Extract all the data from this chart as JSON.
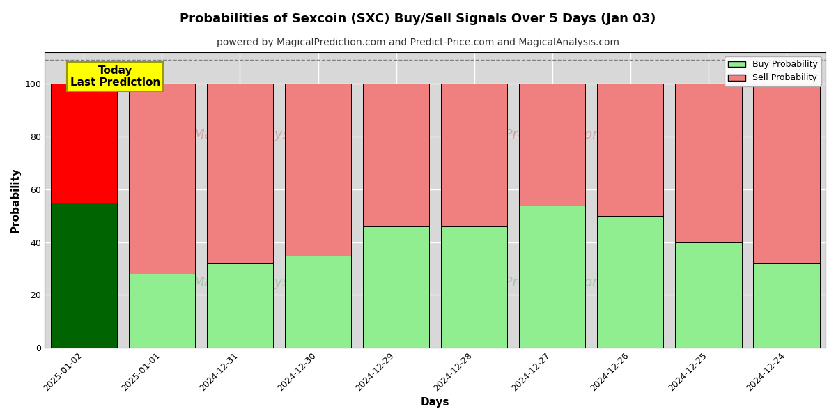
{
  "title": "Probabilities of Sexcoin (SXC) Buy/Sell Signals Over 5 Days (Jan 03)",
  "subtitle": "powered by MagicalPrediction.com and Predict-Price.com and MagicalAnalysis.com",
  "xlabel": "Days",
  "ylabel": "Probability",
  "dates": [
    "2025-01-02",
    "2025-01-01",
    "2024-12-31",
    "2024-12-30",
    "2024-12-29",
    "2024-12-28",
    "2024-12-27",
    "2024-12-26",
    "2024-12-25",
    "2024-12-24"
  ],
  "buy_probs": [
    55,
    28,
    32,
    35,
    46,
    46,
    54,
    50,
    40,
    32
  ],
  "sell_probs": [
    45,
    72,
    68,
    65,
    54,
    54,
    46,
    50,
    60,
    68
  ],
  "today_bar_buy_color": "#006400",
  "today_bar_sell_color": "#ff0000",
  "other_bar_buy_color": "#90EE90",
  "other_bar_sell_color": "#F08080",
  "bar_edge_color": "#000000",
  "ylim": [
    0,
    112
  ],
  "yticks": [
    0,
    20,
    40,
    60,
    80,
    100
  ],
  "dashed_line_y": 109,
  "today_annotation": "Today\nLast Prediction",
  "annotation_bg_color": "#FFFF00",
  "annotation_edge_color": "#999900",
  "legend_buy_label": "Buy Probability",
  "legend_sell_label": "Sell Probability",
  "grid_color": "#ffffff",
  "plot_bg_color": "#d8d8d8",
  "title_fontsize": 13,
  "subtitle_fontsize": 10,
  "axis_label_fontsize": 11,
  "tick_fontsize": 9,
  "bar_width": 0.85
}
